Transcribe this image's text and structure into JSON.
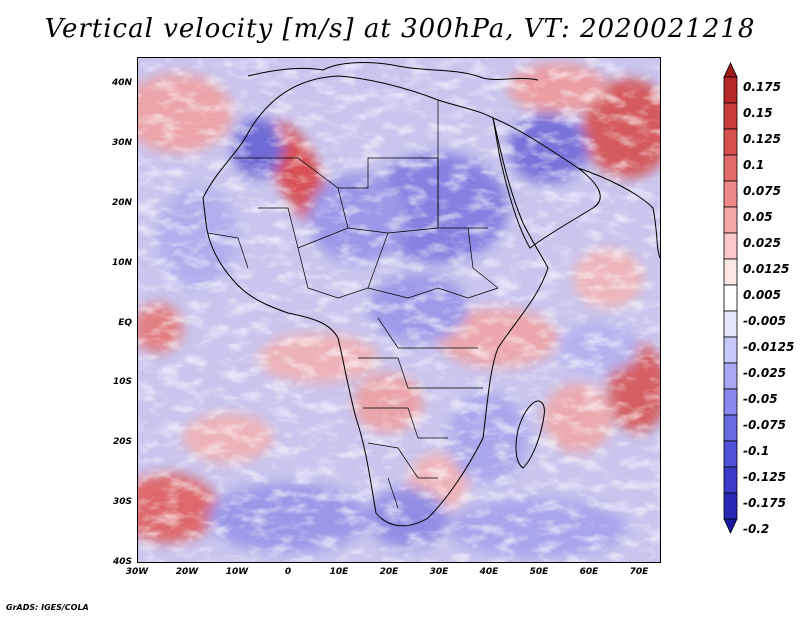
{
  "title": "Vertical velocity [m/s] at 300hPa, VT: 2020021218",
  "credit": "GrADS: IGES/COLA",
  "lat_labels": [
    "40N",
    "30N",
    "20N",
    "10N",
    "EQ",
    "10S",
    "20S",
    "30S",
    "40S"
  ],
  "lon_labels": [
    "30W",
    "20W",
    "10W",
    "0",
    "10E",
    "20E",
    "30E",
    "40E",
    "50E",
    "60E",
    "70E"
  ],
  "colorbar": {
    "labels": [
      "0.175",
      "0.15",
      "0.125",
      "0.1",
      "0.075",
      "0.05",
      "0.025",
      "0.0125",
      "0.005",
      "-0.005",
      "-0.0125",
      "-0.025",
      "-0.05",
      "-0.075",
      "-0.1",
      "-0.125",
      "-0.175",
      "-0.2"
    ],
    "colors": [
      "#a01a1a",
      "#b42828",
      "#c83c3c",
      "#d85050",
      "#e46a6a",
      "#ee8888",
      "#f5a8a8",
      "#fac8c8",
      "#fde6e6",
      "#ffffff",
      "#e6e6fd",
      "#c8c8fa",
      "#a8a8f5",
      "#8888ee",
      "#6a6ae4",
      "#5050d8",
      "#3c3cc8",
      "#2828b4",
      "#1a1aa0"
    ]
  }
}
